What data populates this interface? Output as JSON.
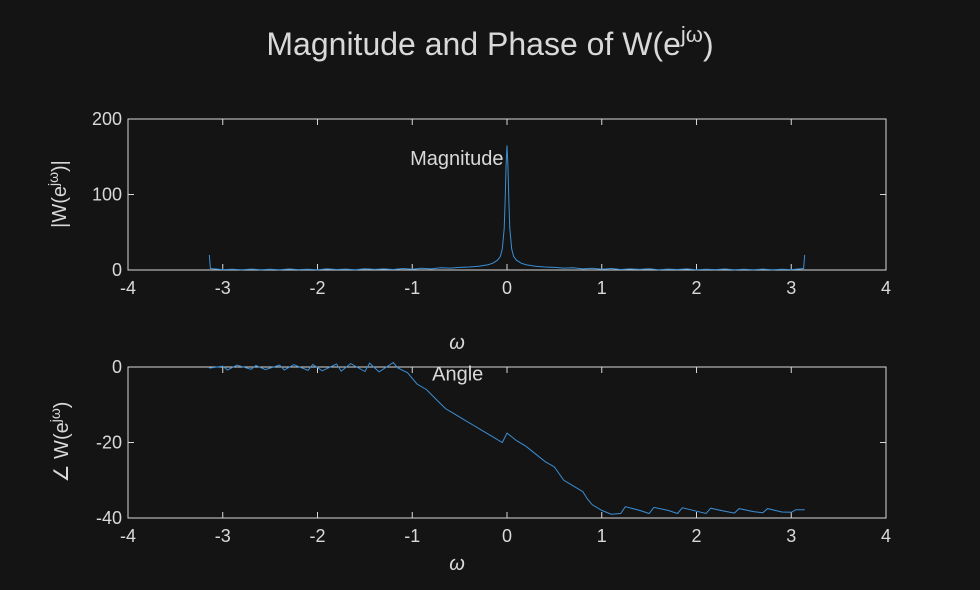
{
  "figure": {
    "background": "#141414",
    "axes_color": "#d9d9d9",
    "line_color": "#3a8fd6"
  },
  "chart_data": [
    {
      "type": "line",
      "title": "Magnitude and Phase of W(e^{jω})",
      "title_parts": {
        "base": "Magnitude  and  Phase  of  W(e",
        "sup": "jω",
        "close": ")"
      },
      "ylabel_parts": {
        "base": "|W(e",
        "sup": "jω",
        "close": ")|"
      },
      "xlabel": "ω",
      "annotation": {
        "text": "Magnitude",
        "x": -0.53,
        "y": 150
      },
      "xlim": [
        -4,
        4
      ],
      "ylim": [
        0,
        200
      ],
      "xticks": [
        -4,
        -3,
        -2,
        -1,
        0,
        1,
        2,
        3,
        4
      ],
      "yticks": [
        0,
        100,
        200
      ],
      "series": [
        {
          "x": [
            -3.1416,
            -3.13,
            -3.0,
            -2.9,
            -2.8,
            -2.7,
            -2.6,
            -2.5,
            -2.4,
            -2.3,
            -2.2,
            -2.1,
            -2.0,
            -1.9,
            -1.8,
            -1.7,
            -1.6,
            -1.5,
            -1.4,
            -1.3,
            -1.2,
            -1.1,
            -1.0,
            -0.9,
            -0.8,
            -0.7,
            -0.6,
            -0.5,
            -0.4,
            -0.3,
            -0.2,
            -0.15,
            -0.1,
            -0.07,
            -0.05,
            -0.03,
            -0.02,
            -0.01,
            0.0,
            0.01,
            0.02,
            0.03,
            0.05,
            0.07,
            0.1,
            0.15,
            0.2,
            0.3,
            0.4,
            0.5,
            0.6,
            0.7,
            0.8,
            0.9,
            1.0,
            1.1,
            1.2,
            1.3,
            1.4,
            1.5,
            1.6,
            1.7,
            1.8,
            1.9,
            2.0,
            2.1,
            2.2,
            2.3,
            2.4,
            2.5,
            2.6,
            2.7,
            2.8,
            2.9,
            3.0,
            3.13,
            3.1416
          ],
          "y": [
            20,
            2,
            0.5,
            1,
            0.3,
            1.2,
            0.4,
            1,
            0.3,
            1.3,
            0.5,
            1.1,
            0.3,
            1.4,
            0.6,
            1.2,
            0.4,
            1.6,
            0.8,
            1.5,
            0.6,
            2,
            1,
            2.2,
            1.5,
            3,
            2.5,
            3.5,
            4,
            5,
            7,
            9,
            13,
            18,
            28,
            55,
            90,
            140,
            165,
            140,
            90,
            55,
            28,
            18,
            13,
            9,
            7,
            5,
            4,
            3.5,
            2.5,
            3,
            1.5,
            2.2,
            1,
            2,
            0.6,
            1.5,
            0.8,
            1.6,
            0.4,
            1.2,
            0.6,
            1.4,
            0.3,
            1.1,
            0.5,
            1.3,
            0.3,
            1,
            0.4,
            1.2,
            0.3,
            1,
            0.5,
            2,
            20
          ]
        }
      ]
    },
    {
      "type": "line",
      "ylabel_parts": {
        "prefix": "∠ ",
        "base": "W(e",
        "sup": "jω",
        "close": ")"
      },
      "xlabel": "ω",
      "annotation": {
        "text": "Angle",
        "x": -0.52,
        "y": -1.5
      },
      "xlim": [
        -4,
        4
      ],
      "ylim": [
        -40,
        0
      ],
      "xticks": [
        -4,
        -3,
        -2,
        -1,
        0,
        1,
        2,
        3,
        4
      ],
      "yticks": [
        -40,
        -20,
        0
      ],
      "series": [
        {
          "x": [
            -3.1416,
            -3.0,
            -2.95,
            -2.85,
            -2.7,
            -2.65,
            -2.55,
            -2.4,
            -2.35,
            -2.25,
            -2.1,
            -2.05,
            -1.95,
            -1.8,
            -1.75,
            -1.65,
            -1.5,
            -1.45,
            -1.35,
            -1.2,
            -1.15,
            -1.05,
            -0.95,
            -0.85,
            -0.75,
            -0.65,
            -0.55,
            -0.45,
            -0.35,
            -0.25,
            -0.15,
            -0.05,
            0.0,
            0.0,
            0.1,
            0.2,
            0.3,
            0.4,
            0.5,
            0.6,
            0.7,
            0.8,
            0.85,
            0.9,
            1.0,
            1.1,
            1.2,
            1.25,
            1.4,
            1.5,
            1.55,
            1.7,
            1.8,
            1.85,
            2.0,
            2.1,
            2.15,
            2.3,
            2.4,
            2.45,
            2.6,
            2.7,
            2.75,
            2.9,
            3.0,
            3.05,
            3.1416
          ],
          "y": [
            -0.3,
            0.2,
            -0.8,
            0.5,
            -0.6,
            0.4,
            -0.7,
            0.5,
            -0.8,
            0.6,
            -0.9,
            0.7,
            -1.0,
            0.8,
            -1.1,
            0.9,
            -1.2,
            1.0,
            -1.3,
            1.2,
            -0.3,
            -1.5,
            -4.5,
            -6.0,
            -8.5,
            -11.0,
            -12.5,
            -14.0,
            -15.5,
            -17.0,
            -18.5,
            -20.0,
            -17.5,
            -17.5,
            -19.5,
            -21.0,
            -23.0,
            -25.0,
            -26.5,
            -30.0,
            -31.5,
            -33.0,
            -35.0,
            -36.5,
            -38.0,
            -39.0,
            -38.8,
            -37.0,
            -38.0,
            -38.8,
            -37.2,
            -38.0,
            -38.8,
            -37.3,
            -38.2,
            -38.8,
            -37.4,
            -38.2,
            -38.7,
            -37.5,
            -38.3,
            -38.6,
            -37.5,
            -38.4,
            -38.5,
            -37.8,
            -37.8
          ]
        }
      ]
    }
  ]
}
